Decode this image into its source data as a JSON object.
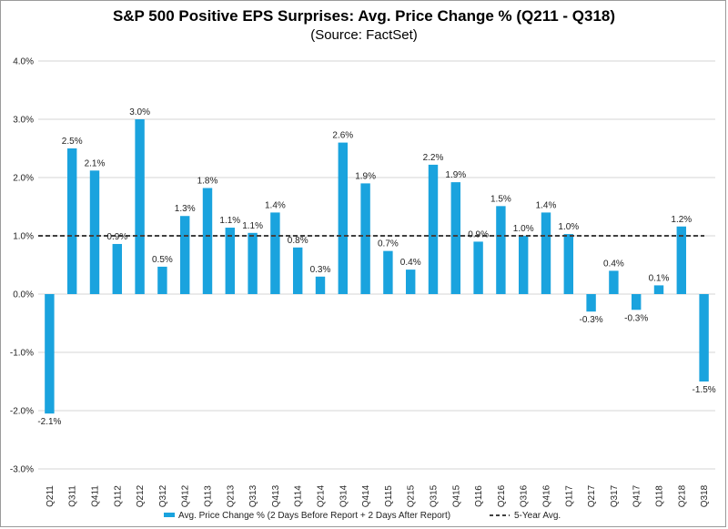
{
  "title": "S&P 500 Positive EPS Surprises: Avg. Price Change % (Q211 - Q318)",
  "subtitle": "(Source: FactSet)",
  "chart_data": {
    "type": "bar",
    "title": "S&P 500 Positive EPS Surprises: Avg. Price Change % (Q211 - Q318)",
    "subtitle": "(Source: FactSet)",
    "xlabel": "",
    "ylabel": "",
    "ylim": [
      -3.0,
      4.0
    ],
    "yticks": [
      "4.0%",
      "3.0%",
      "2.0%",
      "1.0%",
      "0.0%",
      "-1.0%",
      "-2.0%",
      "-3.0%"
    ],
    "ytick_values": [
      4,
      3,
      2,
      1,
      0,
      -1,
      -2,
      -3
    ],
    "grid": true,
    "legend_position": "bottom",
    "categories": [
      "Q211",
      "Q311",
      "Q411",
      "Q112",
      "Q212",
      "Q312",
      "Q412",
      "Q113",
      "Q213",
      "Q313",
      "Q413",
      "Q114",
      "Q214",
      "Q314",
      "Q414",
      "Q115",
      "Q215",
      "Q315",
      "Q415",
      "Q116",
      "Q216",
      "Q316",
      "Q416",
      "Q117",
      "Q217",
      "Q317",
      "Q417",
      "Q118",
      "Q218",
      "Q318"
    ],
    "series": [
      {
        "name": "Avg. Price Change % (2 Days Before Report + 2 Days After Report)",
        "color": "#1aa3de",
        "values": [
          -2.05,
          2.5,
          2.12,
          0.86,
          3.0,
          0.47,
          1.34,
          1.82,
          1.14,
          1.05,
          1.4,
          0.8,
          0.3,
          2.6,
          1.9,
          0.74,
          0.42,
          2.22,
          1.92,
          0.9,
          1.51,
          1.0,
          1.4,
          1.03,
          -0.3,
          0.4,
          -0.27,
          0.15,
          1.16,
          -1.5
        ],
        "labels": [
          "-2.1%",
          "2.5%",
          "2.1%",
          "0.9%",
          "3.0%",
          "0.5%",
          "1.3%",
          "1.8%",
          "1.1%",
          "1.1%",
          "1.4%",
          "0.8%",
          "0.3%",
          "2.6%",
          "1.9%",
          "0.7%",
          "0.4%",
          "2.2%",
          "1.9%",
          "0.9%",
          "1.5%",
          "1.0%",
          "1.4%",
          "1.0%",
          "-0.3%",
          "0.4%",
          "-0.3%",
          "0.1%",
          "1.2%",
          "-1.5%"
        ]
      },
      {
        "name": "5-Year Avg.",
        "color": "#404040",
        "style": "dashed",
        "value": 1.0
      }
    ]
  }
}
